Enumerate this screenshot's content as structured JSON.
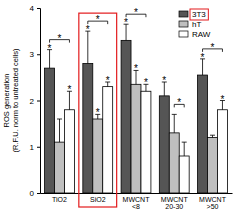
{
  "chart_data": {
    "type": "bar",
    "y_label": [
      "ROS generation",
      "(R.F.U. norm to untreated cells)"
    ],
    "categories": [
      "TiO2",
      "SiO2",
      "MWCNT\n<8",
      "MWCNT\n20-30",
      "MWCNT\n>50"
    ],
    "series": [
      {
        "name": "3T3",
        "color": "#555555",
        "values": [
          2.7,
          2.8,
          3.3,
          2.1,
          2.55
        ],
        "errors": [
          0.4,
          0.7,
          0.35,
          0.3,
          0.35
        ],
        "annotations": [
          "*",
          "*",
          "*",
          "*",
          "*"
        ]
      },
      {
        "name": "hT",
        "color": "#bfbfbf",
        "values": [
          1.1,
          1.6,
          2.35,
          1.3,
          1.2
        ],
        "errors": [
          0.5,
          0.1,
          0.3,
          0.4,
          0.05
        ],
        "annotations": [
          null,
          "*",
          "*",
          null,
          null
        ]
      },
      {
        "name": "RAW",
        "color": "#ffffff",
        "values": [
          1.8,
          2.3,
          2.2,
          0.8,
          1.8
        ],
        "errors": [
          0.4,
          0.1,
          0.15,
          0.3,
          0.2
        ],
        "annotations": [
          "*",
          "*",
          "*",
          null,
          "*"
        ]
      }
    ],
    "brackets": [
      {
        "category": "TiO2",
        "from": "3T3",
        "to": "RAW",
        "text": "*"
      },
      {
        "category": "SiO2",
        "from": "3T3",
        "to": "RAW",
        "text": "*"
      },
      {
        "category": "MWCNT\n<8",
        "from": "3T3",
        "to": "RAW",
        "text": "*"
      },
      {
        "category": "MWCNT\n20-30",
        "from": "hT",
        "to": "RAW",
        "text": "*"
      },
      {
        "category": "MWCNT\n>50",
        "from": "3T3",
        "to": "RAW",
        "text": "*"
      }
    ],
    "highlight": {
      "category": "SiO2",
      "series": "3T3",
      "color": "#e31a1c"
    },
    "ylim": [
      0,
      4
    ],
    "yticks": [
      0,
      1,
      2,
      3,
      4
    ],
    "legend": "top-right",
    "grid": false
  }
}
